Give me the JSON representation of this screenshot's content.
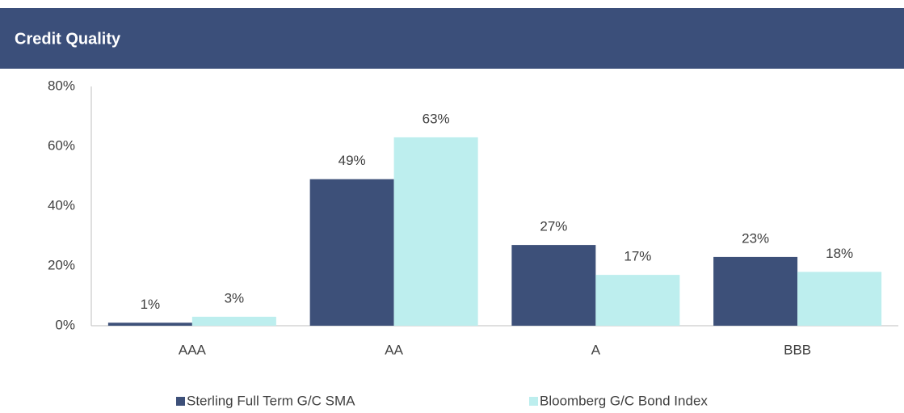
{
  "chart_data": {
    "type": "bar",
    "title": "Credit Quality",
    "categories": [
      "AAA",
      "AA",
      "A",
      "BBB"
    ],
    "series": [
      {
        "name": "Sterling Full Term G/C SMA",
        "color": "#3d5079",
        "values": [
          1,
          49,
          27,
          23
        ],
        "value_labels": [
          "1%",
          "49%",
          "27%",
          "23%"
        ]
      },
      {
        "name": "Bloomberg G/C Bond Index",
        "color": "#bdeeee",
        "values": [
          3,
          63,
          17,
          18
        ],
        "value_labels": [
          "3%",
          "63%",
          "17%",
          "18%"
        ]
      }
    ],
    "ylim": [
      0,
      80
    ],
    "yticks": [
      {
        "value": 0,
        "label": "0%"
      },
      {
        "value": 20,
        "label": "20%"
      },
      {
        "value": 40,
        "label": "40%"
      },
      {
        "value": 60,
        "label": "60%"
      },
      {
        "value": 80,
        "label": "80%"
      }
    ],
    "grid": false,
    "legend": "bottom"
  }
}
